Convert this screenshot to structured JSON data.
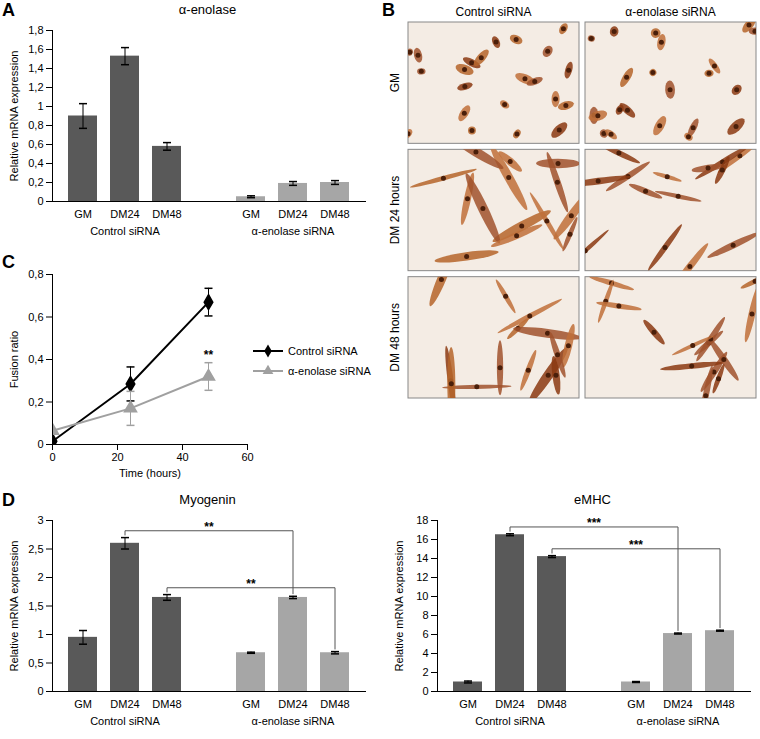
{
  "chart_data": [
    {
      "panel": "A",
      "type": "bar",
      "title": "α-enolase",
      "y_label": "Relative mRNA expression",
      "categories": [
        "GM",
        "DM24",
        "DM48"
      ],
      "series": [
        {
          "name": "Control siRNA",
          "color": "#595959",
          "values": [
            0.9,
            1.53,
            0.58
          ],
          "errors": [
            0.13,
            0.09,
            0.04
          ]
        },
        {
          "name": "α-enolase siRNA",
          "color": "#a6a6a6",
          "values": [
            0.05,
            0.19,
            0.2
          ],
          "errors": [
            0.01,
            0.02,
            0.02
          ]
        }
      ],
      "ylim": [
        0,
        1.8
      ],
      "yticks": [
        0,
        {
          "value": 0.2,
          "label": "0,2"
        },
        {
          "value": 0.4,
          "label": "0,4"
        },
        {
          "value": 0.6,
          "label": "0,6"
        },
        {
          "value": 0.8,
          "label": "0,8"
        },
        1,
        {
          "value": 1.2,
          "label": "1,2"
        },
        {
          "value": 1.4,
          "label": "1,4"
        },
        {
          "value": 1.6,
          "label": "1,6"
        },
        {
          "value": 1.8,
          "label": "1,8"
        }
      ],
      "grid": false
    },
    {
      "panel": "B",
      "type": "image_grid",
      "columns": [
        "Control siRNA",
        "α-enolase siRNA"
      ],
      "rows": [
        "GM",
        "DM 24 hours",
        "DM 48 hours"
      ]
    },
    {
      "panel": "C",
      "type": "line",
      "x_label": "Time (hours)",
      "y_label": "Fusion ratio",
      "legend": "right",
      "xlim": [
        0,
        60
      ],
      "xticks": [
        0,
        20,
        40,
        60
      ],
      "ylim": [
        0,
        0.8
      ],
      "yticks": [
        0,
        {
          "value": 0.2,
          "label": "0,2"
        },
        {
          "value": 0.4,
          "label": "0,4"
        },
        {
          "value": 0.6,
          "label": "0,6"
        },
        {
          "value": 0.8,
          "label": "0,8"
        }
      ],
      "series": [
        {
          "name": "Control siRNA",
          "color": "#000000",
          "marker": "diamond",
          "x": [
            0,
            24,
            48
          ],
          "values": [
            0.015,
            0.285,
            0.67
          ],
          "errors": [
            0.005,
            0.08,
            0.065
          ]
        },
        {
          "name": "α-enolase siRNA",
          "color": "#a0a0a0",
          "marker": "triangle",
          "x": [
            0,
            24,
            48
          ],
          "values": [
            0.065,
            0.17,
            0.32
          ],
          "errors": [
            0.005,
            0.08,
            0.065
          ]
        }
      ],
      "annotations": [
        {
          "text": "**",
          "series": "α-enolase siRNA",
          "x": 48
        }
      ],
      "grid": false
    },
    {
      "panel": "D",
      "type": "bar",
      "title": "Myogenin",
      "y_label": "Relative mRNA expression",
      "categories": [
        "GM",
        "DM24",
        "DM48"
      ],
      "series": [
        {
          "name": "Control siRNA",
          "color": "#595959",
          "values": [
            0.95,
            2.6,
            1.65
          ],
          "errors": [
            0.12,
            0.1,
            0.05
          ]
        },
        {
          "name": "α-enolase siRNA",
          "color": "#a6a6a6",
          "values": [
            0.68,
            1.65,
            0.68
          ],
          "errors": [
            0.01,
            0.02,
            0.02
          ]
        }
      ],
      "ylim": [
        0,
        3
      ],
      "yticks": [
        0,
        {
          "value": 0.5,
          "label": "0,5"
        },
        1,
        {
          "value": 1.5,
          "label": "1,5"
        },
        2,
        {
          "value": 2.5,
          "label": "2,5"
        },
        3
      ],
      "annotations": [
        {
          "text": "**",
          "from": [
            "Control siRNA",
            "DM24"
          ],
          "to": [
            "α-enolase siRNA",
            "DM24"
          ]
        },
        {
          "text": "**",
          "from": [
            "Control siRNA",
            "DM48"
          ],
          "to": [
            "α-enolase siRNA",
            "DM48"
          ]
        }
      ],
      "grid": false
    },
    {
      "type": "bar",
      "title": "eMHC",
      "y_label": "Relative mRNA expression",
      "categories": [
        "GM",
        "DM24",
        "DM48"
      ],
      "series": [
        {
          "name": "Control siRNA",
          "color": "#595959",
          "values": [
            1.0,
            16.5,
            14.2
          ],
          "errors": [
            0.1,
            0.1,
            0.1
          ]
        },
        {
          "name": "α-enolase siRNA",
          "color": "#a6a6a6",
          "values": [
            1.0,
            6.1,
            6.4
          ],
          "errors": [
            0.05,
            0.05,
            0.05
          ]
        }
      ],
      "ylim": [
        0,
        18
      ],
      "yticks": [
        0,
        2,
        4,
        6,
        8,
        10,
        12,
        14,
        16,
        18
      ],
      "annotations": [
        {
          "text": "***",
          "from": [
            "Control siRNA",
            "DM24"
          ],
          "to": [
            "α-enolase siRNA",
            "DM24"
          ]
        },
        {
          "text": "***",
          "from": [
            "Control siRNA",
            "DM48"
          ],
          "to": [
            "α-enolase siRNA",
            "DM48"
          ]
        }
      ],
      "grid": false
    }
  ]
}
